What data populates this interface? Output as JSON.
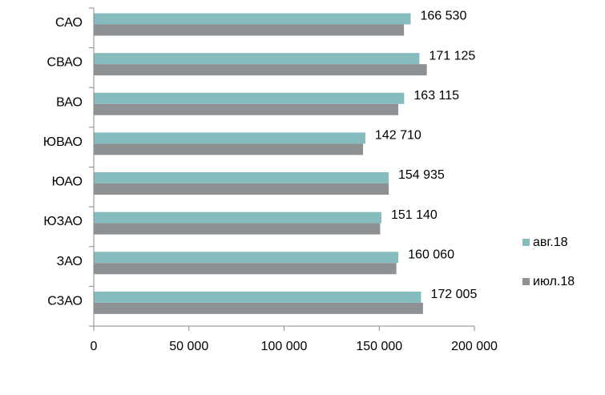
{
  "chart_data": {
    "type": "bar",
    "orientation": "horizontal",
    "categories": [
      "САО",
      "СВАО",
      "ВАО",
      "ЮВАО",
      "ЮАО",
      "ЮЗАО",
      "ЗАО",
      "СЗАО"
    ],
    "series": [
      {
        "name": "авг.18",
        "color": "#86BCBE",
        "values": [
          166530,
          171125,
          163115,
          142710,
          154935,
          151140,
          160060,
          172005
        ],
        "labels": [
          "166 530",
          "171 125",
          "163 115",
          "142 710",
          "154 935",
          "151 140",
          "160 060",
          "172 005"
        ]
      },
      {
        "name": "июл.18",
        "color": "#8E9194",
        "values": [
          163000,
          175000,
          160000,
          141500,
          155000,
          150500,
          159000,
          173000
        ],
        "labels": []
      }
    ],
    "xlim": [
      0,
      200000
    ],
    "xticks": [
      0,
      50000,
      100000,
      150000,
      200000
    ],
    "xtick_labels": [
      "0",
      "50 000",
      "100 000",
      "150 000",
      "200 000"
    ],
    "title": "",
    "xlabel": "",
    "ylabel": "",
    "grid": false,
    "legend_position": "right"
  }
}
